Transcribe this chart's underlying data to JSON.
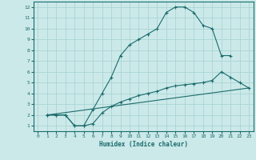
{
  "xlabel": "Humidex (Indice chaleur)",
  "bg_color": "#cce9e9",
  "grid_color": "#aad4d4",
  "line_color": "#1a6b6b",
  "xlim": [
    -0.5,
    23.5
  ],
  "ylim": [
    0.5,
    12.5
  ],
  "xticks": [
    0,
    1,
    2,
    3,
    4,
    5,
    6,
    7,
    8,
    9,
    10,
    11,
    12,
    13,
    14,
    15,
    16,
    17,
    18,
    19,
    20,
    21,
    22,
    23
  ],
  "yticks": [
    1,
    2,
    3,
    4,
    5,
    6,
    7,
    8,
    9,
    10,
    11,
    12
  ],
  "line1_x": [
    1,
    2,
    3,
    4,
    5,
    6,
    7,
    8,
    9,
    10,
    11,
    12,
    13,
    14,
    15,
    16,
    17,
    18,
    19,
    20,
    21
  ],
  "line1_y": [
    2,
    2,
    2,
    1,
    1,
    2.5,
    4.0,
    5.5,
    7.5,
    8.5,
    9.0,
    9.5,
    10.0,
    11.5,
    12.0,
    12.0,
    11.5,
    10.3,
    10.0,
    7.5,
    7.5
  ],
  "line2_x": [
    1,
    2,
    3,
    4,
    5,
    6,
    7,
    8,
    9,
    10,
    11,
    12,
    13,
    14,
    15,
    16,
    17,
    18,
    19,
    20,
    21,
    22,
    23
  ],
  "line2_y": [
    2,
    2,
    2,
    1,
    1,
    1.2,
    2.2,
    2.8,
    3.2,
    3.5,
    3.8,
    4.0,
    4.2,
    4.5,
    4.7,
    4.8,
    4.9,
    5.0,
    5.2,
    6.0,
    5.5,
    5.0,
    4.5
  ],
  "line3_x": [
    1,
    23
  ],
  "line3_y": [
    2,
    4.5
  ]
}
